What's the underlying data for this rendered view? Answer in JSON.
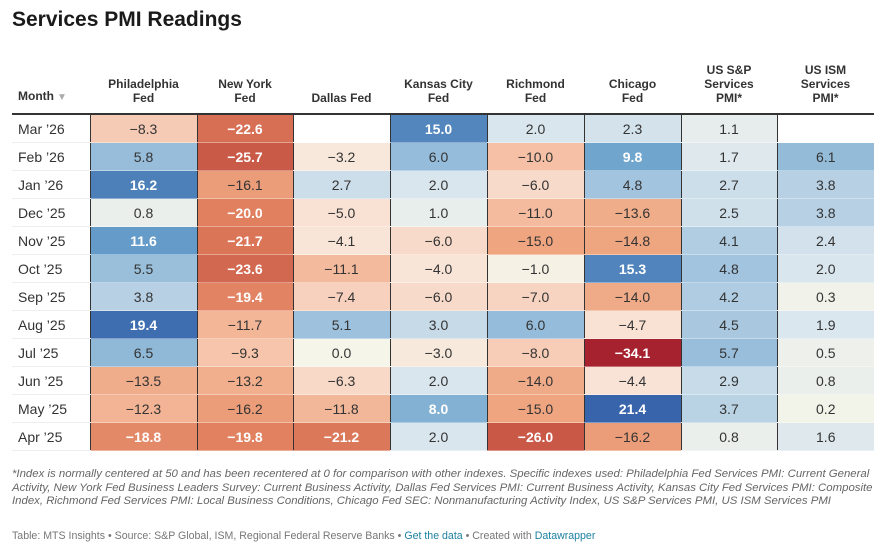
{
  "title": "Services PMI Readings",
  "chart_data": {
    "type": "table",
    "title": "Services PMI Readings",
    "columns": [
      "Month",
      "Philadelphia Fed",
      "New York Fed",
      "Dallas Fed",
      "Kansas City Fed",
      "Richmond Fed",
      "Chicago Fed",
      "US S&P Services PMI*",
      "US ISM Services PMI*"
    ],
    "sort": {
      "column": "Month",
      "direction": "descending"
    },
    "rows": [
      {
        "month": "Mar ’26",
        "values": [
          -8.3,
          -22.6,
          null,
          15.0,
          2.0,
          2.3,
          1.1,
          null
        ]
      },
      {
        "month": "Feb ’26",
        "values": [
          5.8,
          -25.7,
          -3.2,
          6.0,
          -10.0,
          9.8,
          1.7,
          6.1
        ]
      },
      {
        "month": "Jan ’26",
        "values": [
          16.2,
          -16.1,
          2.7,
          2.0,
          -6.0,
          4.8,
          2.7,
          3.8
        ]
      },
      {
        "month": "Dec ’25",
        "values": [
          0.8,
          -20.0,
          -5.0,
          1.0,
          -11.0,
          -13.6,
          2.5,
          3.8
        ]
      },
      {
        "month": "Nov ’25",
        "values": [
          11.6,
          -21.7,
          -4.1,
          -6.0,
          -15.0,
          -14.8,
          4.1,
          2.4
        ]
      },
      {
        "month": "Oct ’25",
        "values": [
          5.5,
          -23.6,
          -11.1,
          -4.0,
          -1.0,
          15.3,
          4.8,
          2.0
        ]
      },
      {
        "month": "Sep ’25",
        "values": [
          3.8,
          -19.4,
          -7.4,
          -6.0,
          -7.0,
          -14.0,
          4.2,
          0.3
        ]
      },
      {
        "month": "Aug ’25",
        "values": [
          19.4,
          -11.7,
          5.1,
          3.0,
          6.0,
          -4.7,
          4.5,
          1.9
        ]
      },
      {
        "month": "Jul ’25",
        "values": [
          6.5,
          -9.3,
          0.0,
          -3.0,
          -8.0,
          -34.1,
          5.7,
          0.5
        ]
      },
      {
        "month": "Jun ’25",
        "values": [
          -13.5,
          -13.2,
          -6.3,
          2.0,
          -14.0,
          -4.4,
          2.9,
          0.8
        ]
      },
      {
        "month": "May ’25",
        "values": [
          -12.3,
          -16.2,
          -11.8,
          8.0,
          -15.0,
          21.4,
          3.7,
          0.2
        ]
      },
      {
        "month": "Apr ’25",
        "values": [
          -18.8,
          -19.8,
          -21.2,
          2.0,
          -26.0,
          -16.2,
          0.8,
          1.6
        ]
      }
    ],
    "color_scale": {
      "type": "diverging",
      "stops": [
        [
          -34,
          "#a6222f"
        ],
        [
          -25,
          "#cd5f4a"
        ],
        [
          -20,
          "#e0805f"
        ],
        [
          -15,
          "#eea580"
        ],
        [
          -10,
          "#f5c0a5"
        ],
        [
          -5,
          "#f9e1d3"
        ],
        [
          0,
          "#f5f5ea"
        ],
        [
          2,
          "#dae6ee"
        ],
        [
          5,
          "#9fc2dd"
        ],
        [
          10,
          "#6ea5cd"
        ],
        [
          15,
          "#5286bd"
        ],
        [
          21,
          "#3764ab"
        ]
      ]
    }
  },
  "header": {
    "month": "Month",
    "sort_icon": "triangle-down-icon",
    "cols": [
      [
        "Philadelphia",
        "Fed"
      ],
      [
        "New York",
        "Fed"
      ],
      [
        "Dallas Fed"
      ],
      [
        "Kansas City",
        "Fed"
      ],
      [
        "Richmond",
        "Fed"
      ],
      [
        "Chicago",
        "Fed"
      ],
      [
        "US S&P",
        "Services",
        "PMI*"
      ],
      [
        "US ISM",
        "Services",
        "PMI*"
      ]
    ]
  },
  "notes": "*Index is normally centered at 50 and has been recentered at 0 for comparison with other indexes. Specific indexes used: Philadelphia Fed Services PMI: Current General Activity, New York Fed Business Leaders Survey: Current Business Activity, Dallas Fed Services PMI: Current Business Activity, Kansas City Fed Services PMI: Composite Index, Richmond Fed Services PMI: Local Business Conditions, Chicago Fed SEC: Nonmanufacturing Activity Index, US S&P Services PMI, US ISM Services PMI",
  "footer": {
    "table_credit": "Table: MTS Insights",
    "source": "Source: S&P Global, ISM, Regional Federal Reserve Banks",
    "separator": " • ",
    "get_data": "Get the data",
    "created_with": "Created with",
    "datawrapper": "Datawrapper"
  }
}
